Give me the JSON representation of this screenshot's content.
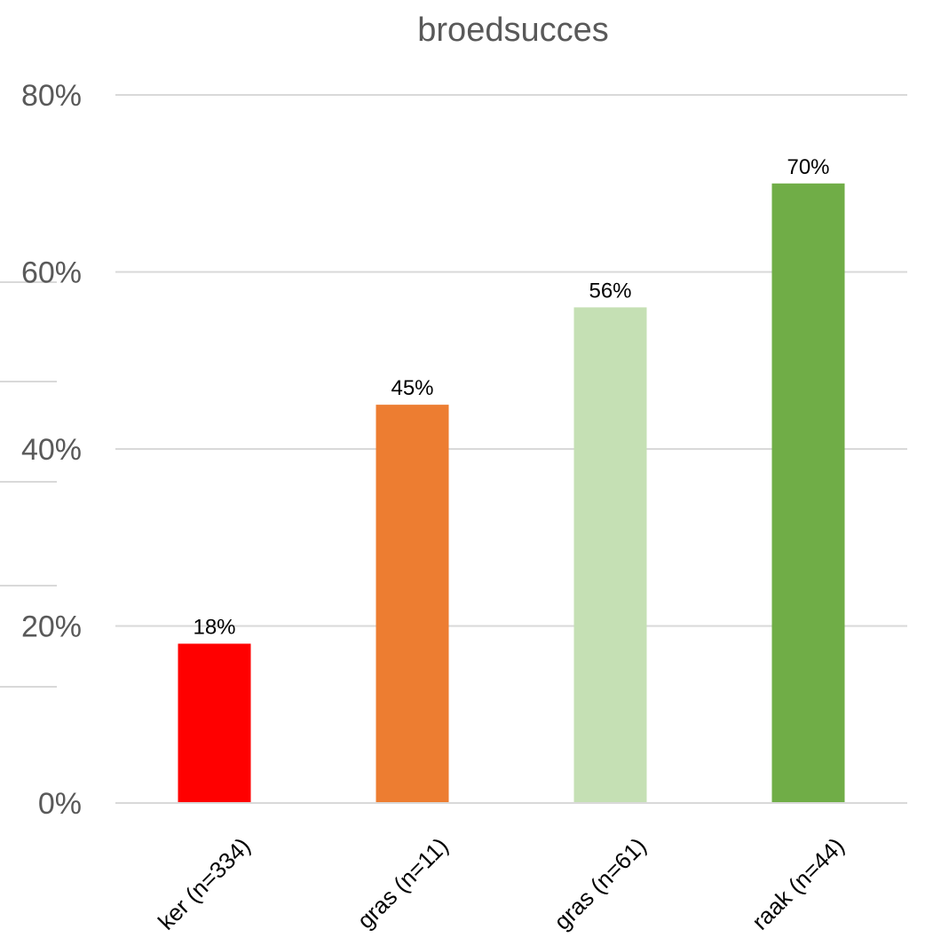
{
  "chart_data": {
    "type": "bar",
    "title": "broedsucces",
    "xlabel": "",
    "ylabel": "",
    "ylim": [
      0,
      0.8
    ],
    "yticks": [
      0,
      0.2,
      0.4,
      0.6,
      0.8
    ],
    "ytick_labels": [
      "0%",
      "20%",
      "40%",
      "60%",
      "80%"
    ],
    "grid": true,
    "legend": "none",
    "categories": [
      "ker (n=334)",
      "gras (n=11)",
      "gras (n=61)",
      "raak (n=44)"
    ],
    "values": [
      0.18,
      0.45,
      0.56,
      0.7
    ],
    "data_labels": [
      "18%",
      "45%",
      "56%",
      "70%"
    ],
    "colors": [
      "#ff0000",
      "#ed7d31",
      "#c5e0b4",
      "#70ad47"
    ]
  }
}
